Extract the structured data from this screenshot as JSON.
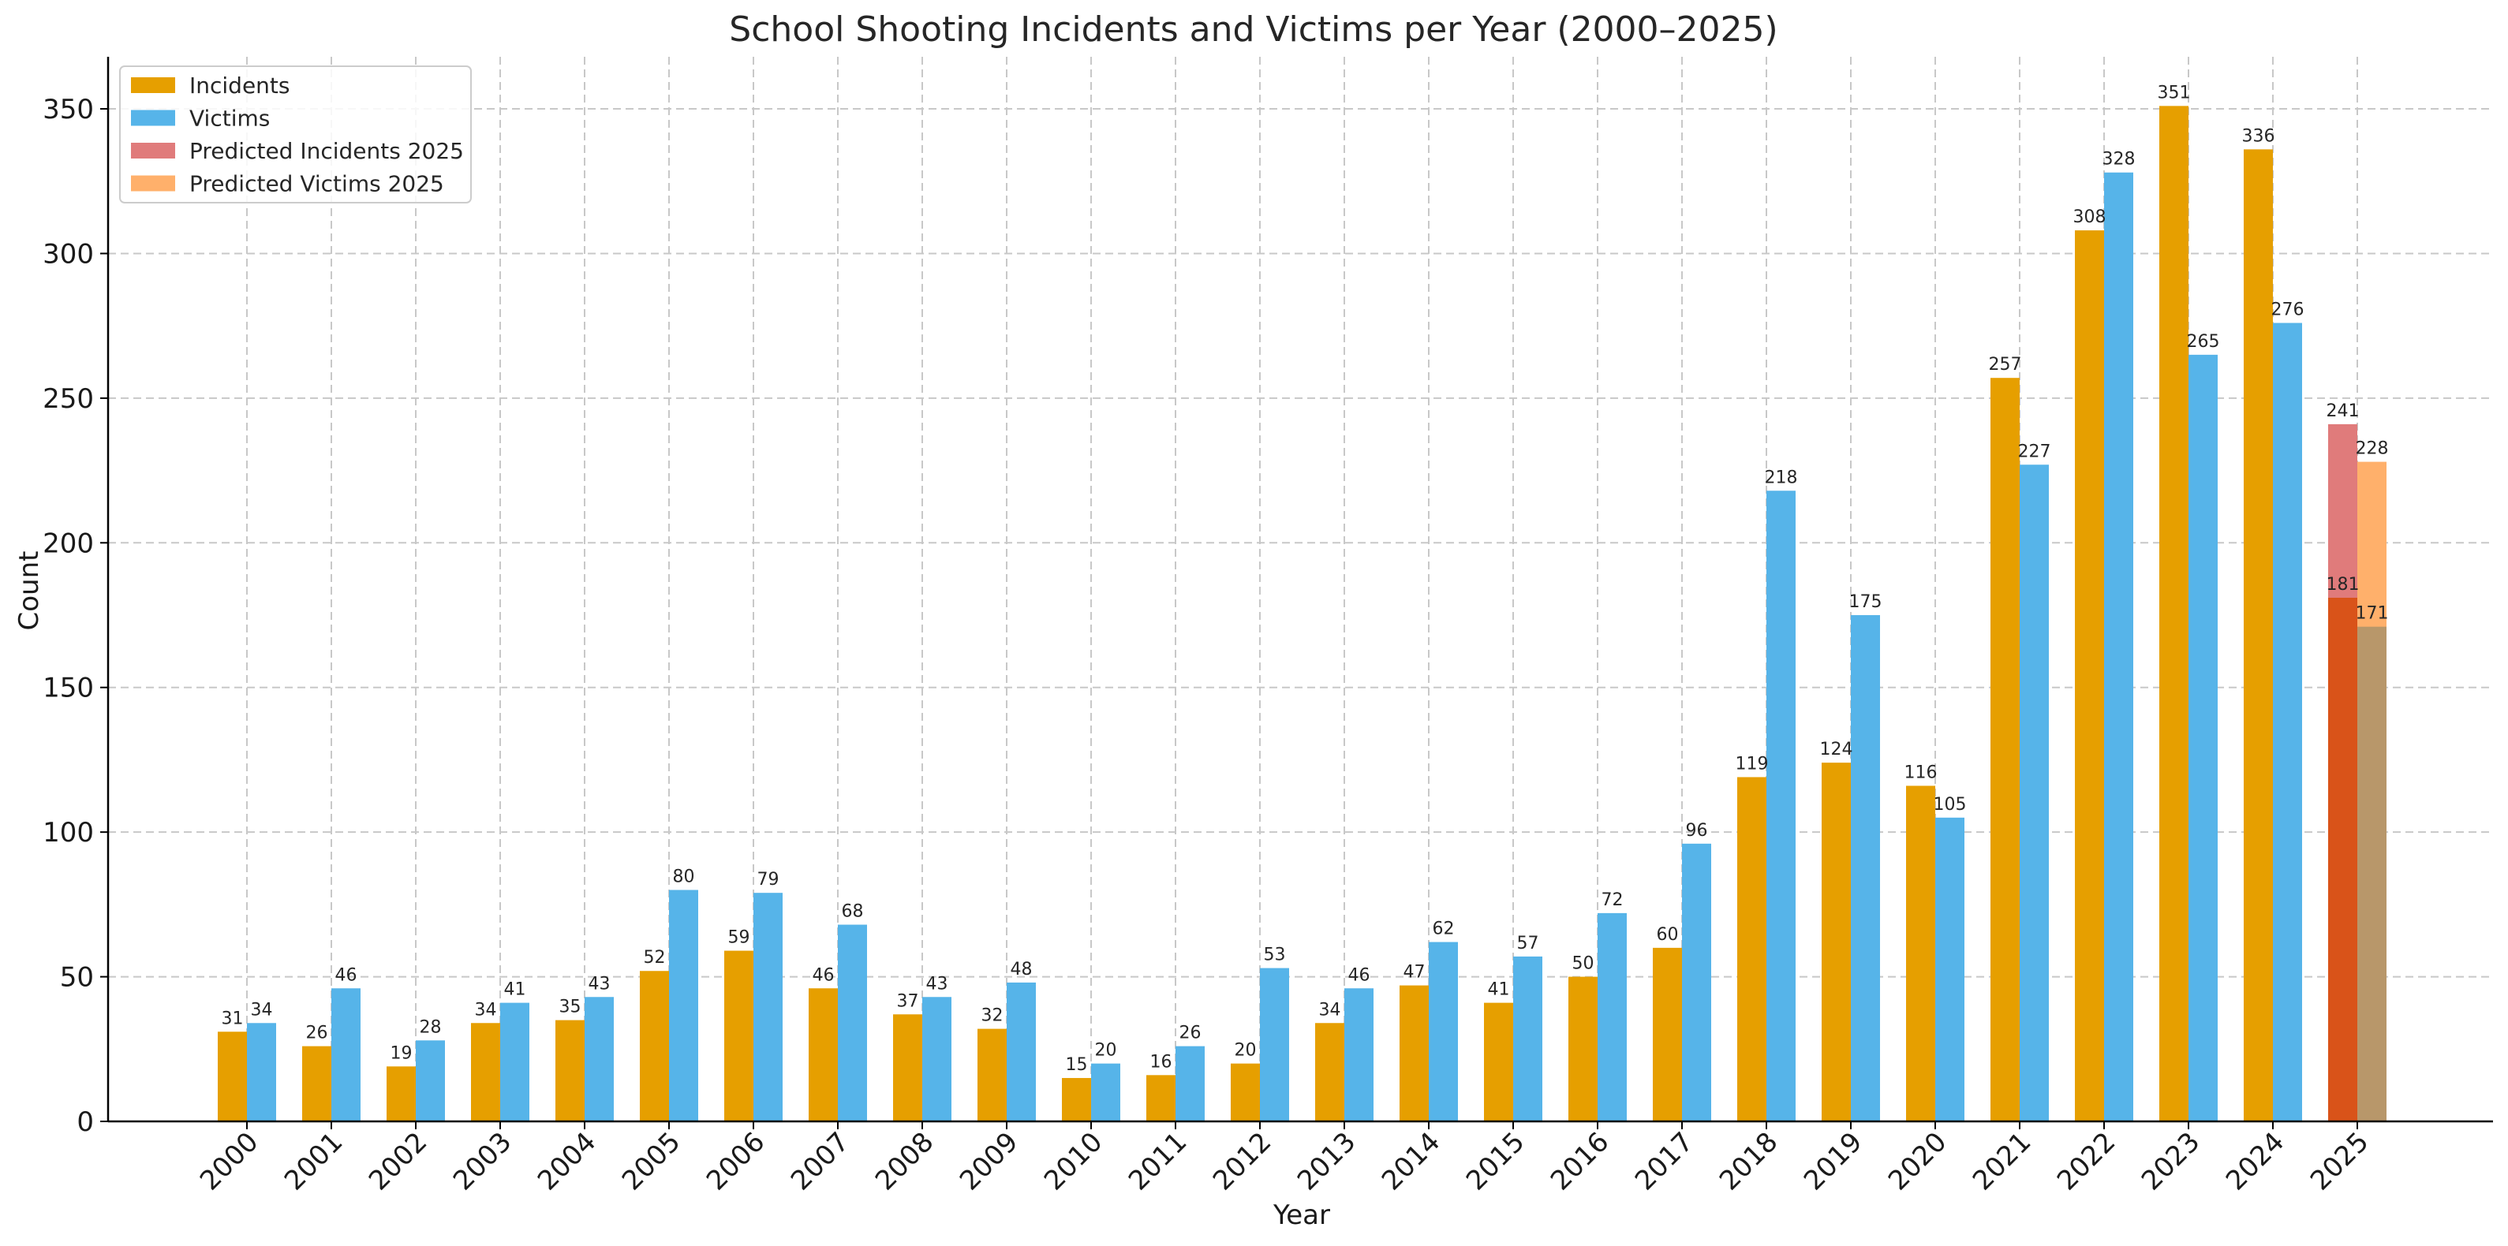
{
  "chart_data": {
    "type": "bar",
    "title": "School Shooting Incidents and Victims per Year (2000–2025)",
    "xlabel": "Year",
    "ylabel": "Count",
    "ylim": [
      0,
      368
    ],
    "yticks": [
      0,
      50,
      100,
      150,
      200,
      250,
      300,
      350
    ],
    "grid": true,
    "legend_position": "top-left",
    "categories": [
      "2000",
      "2001",
      "2002",
      "2003",
      "2004",
      "2005",
      "2006",
      "2007",
      "2008",
      "2009",
      "2010",
      "2011",
      "2012",
      "2013",
      "2014",
      "2015",
      "2016",
      "2017",
      "2018",
      "2019",
      "2020",
      "2021",
      "2022",
      "2023",
      "2024",
      "2025"
    ],
    "series": [
      {
        "name": "Incidents",
        "color": "#E69F00",
        "values": [
          31,
          26,
          19,
          34,
          35,
          52,
          59,
          46,
          37,
          32,
          15,
          16,
          20,
          34,
          47,
          41,
          50,
          60,
          119,
          124,
          116,
          257,
          308,
          351,
          336,
          181
        ]
      },
      {
        "name": "Victims",
        "color": "#56B4E9",
        "values": [
          34,
          46,
          28,
          41,
          43,
          80,
          79,
          68,
          43,
          48,
          20,
          26,
          53,
          46,
          62,
          57,
          72,
          96,
          218,
          175,
          105,
          227,
          328,
          265,
          276,
          171
        ]
      }
    ],
    "predicted": [
      {
        "name": "Predicted Incidents 2025",
        "color": "#E07B7B",
        "overlap_color": "#D95319",
        "category": "2025",
        "value": 241
      },
      {
        "name": "Predicted Victims 2025",
        "color": "#FFB06B",
        "overlap_color": "#B8976A",
        "category": "2025",
        "value": 228
      }
    ]
  }
}
